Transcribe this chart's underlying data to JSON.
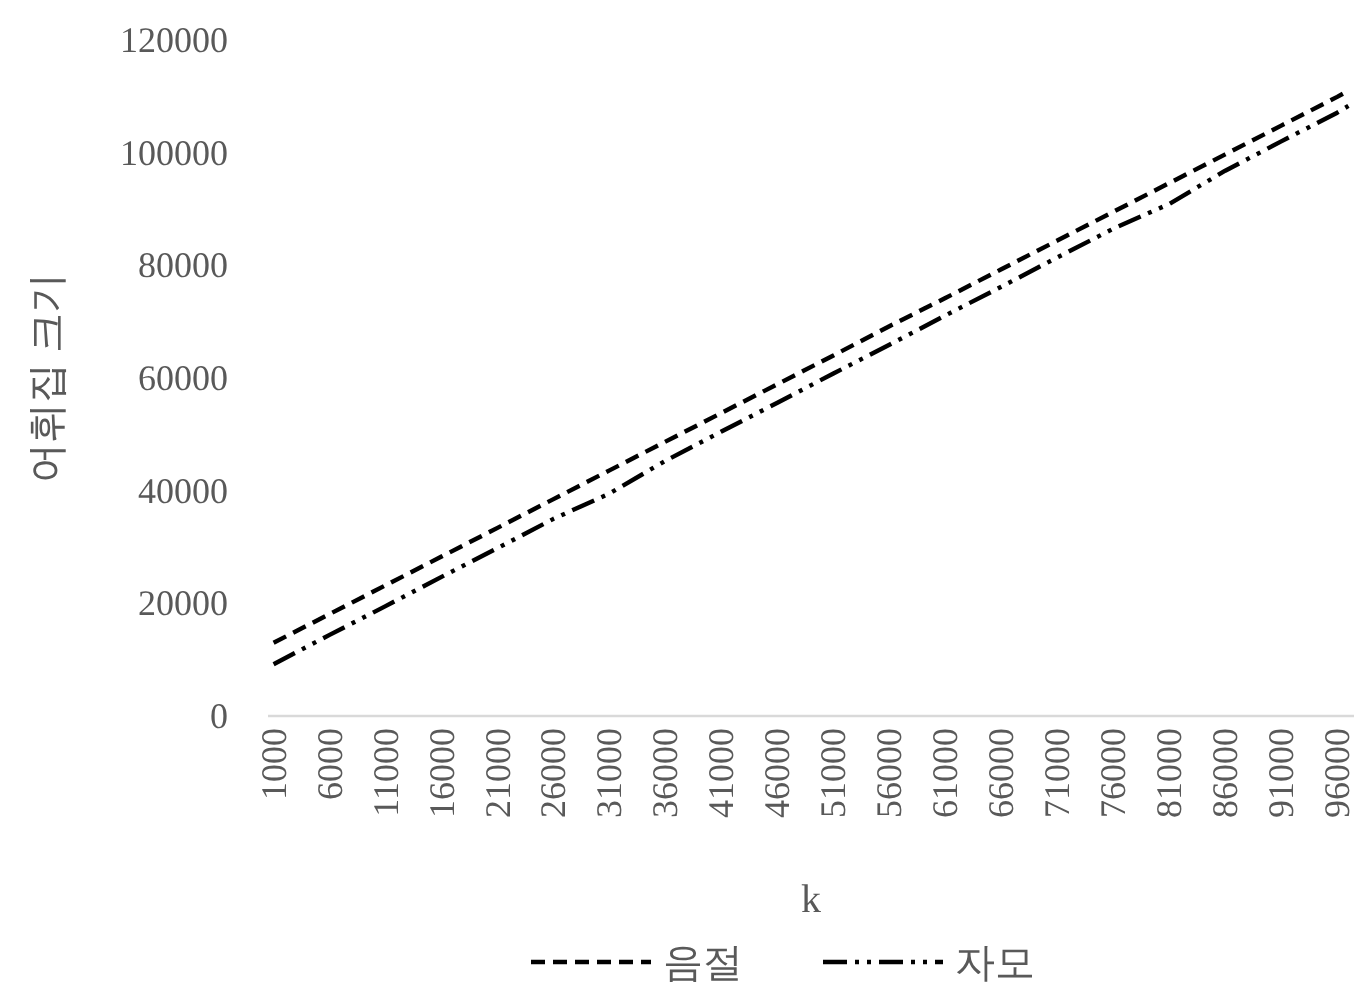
{
  "chart_data": {
    "type": "line",
    "xlabel": "k",
    "ylabel": "어휘집 크기",
    "grid": false,
    "legend": "bottom",
    "xlim": [
      500,
      97500
    ],
    "ylim": [
      0,
      120000
    ],
    "xticks": [
      1000,
      6000,
      11000,
      16000,
      21000,
      26000,
      31000,
      36000,
      41000,
      46000,
      51000,
      56000,
      61000,
      66000,
      71000,
      76000,
      81000,
      86000,
      91000,
      96000
    ],
    "yticks": [
      0,
      20000,
      40000,
      60000,
      80000,
      100000,
      120000
    ],
    "x": [
      1000,
      6000,
      11000,
      16000,
      21000,
      26000,
      31000,
      36000,
      41000,
      46000,
      51000,
      56000,
      61000,
      66000,
      71000,
      76000,
      81000,
      86000,
      91000,
      96000,
      97000
    ],
    "series": [
      {
        "name": "음절",
        "color": "#000000",
        "line_style": "dashed",
        "values": [
          13000,
          18100,
          23200,
          28300,
          33400,
          38500,
          43600,
          48700,
          53800,
          58900,
          64000,
          69200,
          74200,
          79300,
          84400,
          89500,
          94600,
          99700,
          104800,
          109900,
          111000
        ]
      },
      {
        "name": "자모",
        "color": "#000000",
        "line_style": "dashdotdot",
        "values": [
          9200,
          14400,
          19500,
          24700,
          29800,
          35000,
          39500,
          45300,
          50500,
          55600,
          60800,
          65900,
          71100,
          76200,
          81400,
          86500,
          90900,
          96800,
          102000,
          107100,
          108300
        ]
      }
    ]
  }
}
